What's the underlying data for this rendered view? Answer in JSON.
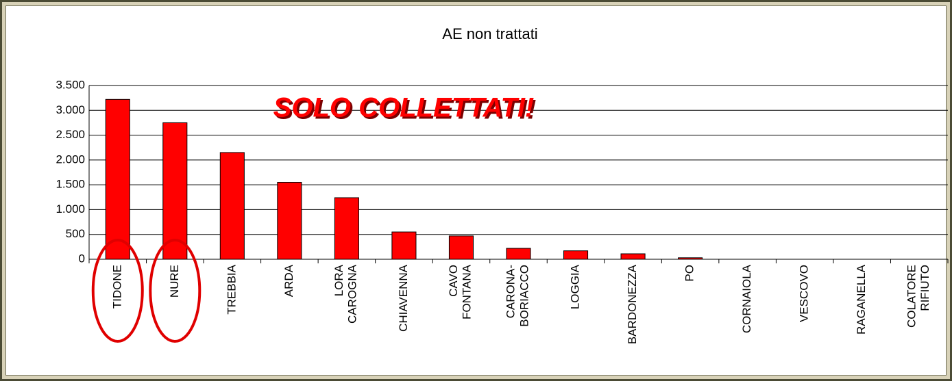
{
  "chart_data": {
    "type": "bar",
    "title": "AE non trattati",
    "annotation": "SOLO COLLETTATI!",
    "categories": [
      "TIDONE",
      "NURE",
      "TREBBIA",
      "ARDA",
      "LORA\nCAROGNA",
      "CHIAVENNA",
      "CAVO\nFONTANA",
      "CARONA-\nBORIACCO",
      "LOGGIA",
      "BARDONEZZA",
      "PO",
      "CORNAIOLA",
      "VESCOVO",
      "RAGANELLA",
      "COLATORE\nRIFIUTO"
    ],
    "values": [
      3220,
      2750,
      2150,
      1550,
      1240,
      550,
      470,
      220,
      170,
      110,
      30,
      0,
      0,
      0,
      0
    ],
    "color": "#ff0000",
    "ylim": [
      0,
      3500
    ],
    "yticks": [
      0,
      500,
      {
        "value": 1000,
        "label": "1.000"
      },
      {
        "value": 1500,
        "label": "1.500"
      },
      {
        "value": 2000,
        "label": "2.000"
      },
      {
        "value": 2500,
        "label": "2.500"
      },
      {
        "value": 3000,
        "label": "3.000"
      },
      {
        "value": 3500,
        "label": "3.500"
      }
    ],
    "grid": true
  }
}
